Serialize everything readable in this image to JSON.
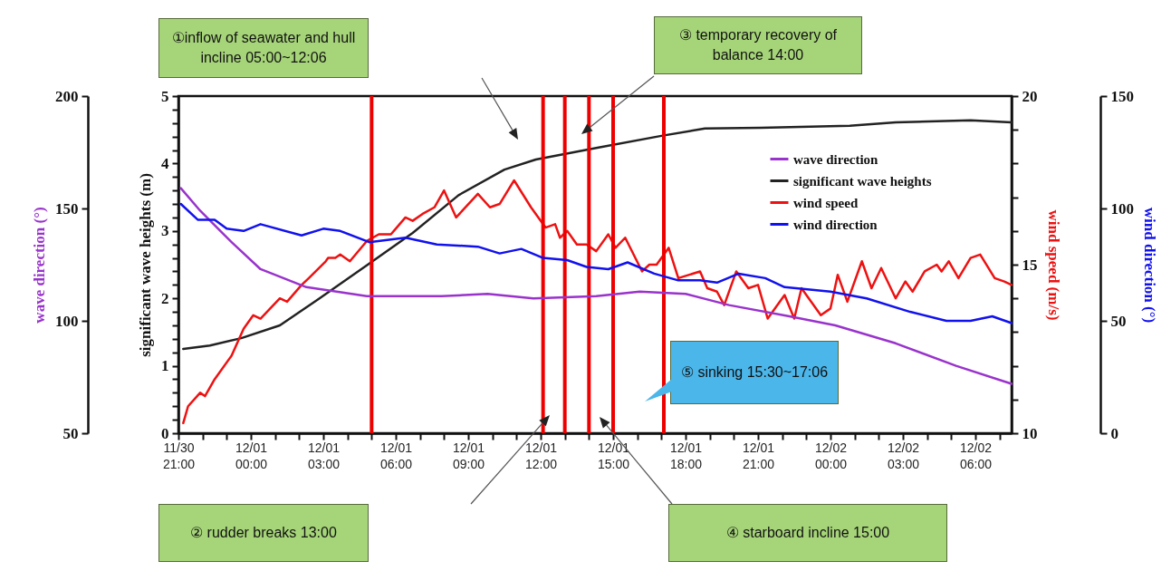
{
  "chart_data": [
    {
      "type": "line",
      "ylabel": "significant wave heights (m)",
      "y2label": "wind speed (m/s)",
      "xlim": [
        "--11-30T21:00",
        "--12-02T07:30"
      ],
      "xticks": [
        {
          "value": "--11-30T21:00",
          "label": "11/30 21:00"
        },
        {
          "value": "--11-30T22:00",
          "label": null
        },
        {
          "value": "--11-30T23:00",
          "label": null
        },
        {
          "value": "--12-01T00:00",
          "label": "12/01 00:00"
        },
        {
          "value": "--12-01T01:00",
          "label": null
        },
        {
          "value": "--12-01T02:00",
          "label": null
        },
        {
          "value": "--12-01T03:00",
          "label": "12/01 03:00"
        },
        {
          "value": "--12-01T04:00",
          "label": null
        },
        {
          "value": "--12-01T05:00",
          "label": null
        },
        {
          "value": "--12-01T06:00",
          "label": "12/01 06:00"
        },
        {
          "value": "--12-01T07:00",
          "label": null
        },
        {
          "value": "--12-01T08:00",
          "label": null
        },
        {
          "value": "--12-01T09:00",
          "label": "12/01 09:00"
        },
        {
          "value": "--12-01T10:00",
          "label": null
        },
        {
          "value": "--12-01T11:00",
          "label": null
        },
        {
          "value": "--12-01T12:00",
          "label": "12/01 12:00"
        },
        {
          "value": "--12-01T13:00",
          "label": null
        },
        {
          "value": "--12-01T14:00",
          "label": null
        },
        {
          "value": "--12-01T15:00",
          "label": "12/01 15:00"
        },
        {
          "value": "--12-01T16:00",
          "label": null
        },
        {
          "value": "--12-01T17:00",
          "label": null
        },
        {
          "value": "--12-01T18:00",
          "label": "12/01 18:00"
        },
        {
          "value": "--12-01T19:00",
          "label": null
        },
        {
          "value": "--12-01T20:00",
          "label": null
        },
        {
          "value": "--12-01T21:00",
          "label": "12/01 21:00"
        },
        {
          "value": "--12-01T22:00",
          "label": null
        },
        {
          "value": "--12-01T23:00",
          "label": null
        },
        {
          "value": "--12-02T00:00",
          "label": "12/02 00:00"
        },
        {
          "value": "--12-02T01:00",
          "label": null
        },
        {
          "value": "--12-02T02:00",
          "label": null
        },
        {
          "value": "--12-02T03:00",
          "label": "12/02 03:00"
        },
        {
          "value": "--12-02T04:00",
          "label": null
        },
        {
          "value": "--12-02T05:00",
          "label": null
        },
        {
          "value": "--12-02T06:00",
          "label": "12/02 06:00"
        },
        {
          "value": "--12-02T07:00",
          "label": null
        }
      ],
      "ylim": [
        0,
        5
      ],
      "yticks": [
        0,
        {
          "value": 0.2,
          "label": null
        },
        {
          "value": 0.4,
          "label": null
        },
        {
          "value": 0.6,
          "label": null
        },
        {
          "value": 0.8,
          "label": null
        },
        1,
        {
          "value": 1.2,
          "label": null
        },
        {
          "value": 1.4,
          "label": null
        },
        {
          "value": 1.6,
          "label": null
        },
        {
          "value": 1.8,
          "label": null
        },
        2,
        {
          "value": 2.2,
          "label": null
        },
        {
          "value": 2.4,
          "label": null
        },
        {
          "value": 2.6,
          "label": null
        },
        {
          "value": 2.8,
          "label": null
        },
        3,
        {
          "value": 3.2,
          "label": null
        },
        {
          "value": 3.4,
          "label": null
        },
        {
          "value": 3.6,
          "label": null
        },
        {
          "value": 3.8,
          "label": null
        },
        4,
        {
          "value": 4.2,
          "label": null
        },
        {
          "value": 4.4,
          "label": null
        },
        {
          "value": 4.6,
          "label": null
        },
        {
          "value": 4.8,
          "label": null
        },
        5
      ],
      "y2lim": [
        10,
        20
      ],
      "y2ticks": [
        10,
        {
          "value": 11,
          "label": null
        },
        {
          "value": 12,
          "label": null
        },
        {
          "value": 13,
          "label": null
        },
        {
          "value": 14,
          "label": null
        },
        15,
        {
          "value": 16,
          "label": null
        },
        {
          "value": 17,
          "label": null
        },
        {
          "value": 18,
          "label": null
        },
        {
          "value": 19,
          "label": null
        },
        20
      ],
      "series": [
        {
          "name": "significant wave heights",
          "color": "#222222",
          "x": [
            "--11-30T21:12",
            "--11-30T22:18",
            "--11-30T23:36",
            "--12-01T01:12",
            "--12-01T02:48",
            "--12-01T04:48",
            "--12-01T06:42",
            "--12-01T08:36",
            "--12-01T10:30",
            "--12-01T11:48",
            "--12-01T14:18",
            "--12-01T17:00",
            "--12-01T18:48",
            "--12-01T21:06",
            "--12-02T00:48",
            "--12-02T02:42",
            "--12-02T05:48",
            "--12-02T07:30"
          ],
          "values": [
            1.25,
            1.3,
            1.41,
            1.6,
            1.99,
            2.49,
            2.97,
            3.53,
            3.91,
            4.06,
            4.23,
            4.41,
            4.52,
            4.53,
            4.56,
            4.61,
            4.64,
            4.61
          ]
        },
        {
          "name": "wind speed",
          "color": "#ee1111",
          "axis": "y2",
          "x": [
            "--11-30T21:12",
            "--11-30T21:24",
            "--11-30T21:54",
            "--11-30T22:06",
            "--11-30T22:30",
            "--11-30T23:12",
            "--11-30T23:42",
            "--12-01T00:06",
            "--12-01T00:24",
            "--12-01T01:12",
            "--12-01T01:30",
            "--12-01T02:06",
            "--12-01T02:24",
            "--12-01T03:06",
            "--12-01T03:12",
            "--12-01T03:30",
            "--12-01T03:42",
            "--12-01T04:06",
            "--12-01T04:48",
            "--12-01T05:18",
            "--12-01T05:48",
            "--12-01T06:24",
            "--12-01T06:42",
            "--12-01T07:06",
            "--12-01T07:36",
            "--12-01T08:00",
            "--12-01T08:30",
            "--12-01T09:24",
            "--12-01T09:54",
            "--12-01T10:18",
            "--12-01T10:54",
            "--12-01T11:36",
            "--12-01T12:12",
            "--12-01T12:36",
            "--12-01T12:48",
            "--12-01T13:06",
            "--12-01T13:30",
            "--12-01T13:54",
            "--12-01T14:18",
            "--12-01T14:48",
            "--12-01T15:06",
            "--12-01T15:30",
            "--12-01T16:12",
            "--12-01T16:30",
            "--12-01T16:48",
            "--12-01T17:18",
            "--12-01T17:42",
            "--12-01T18:36",
            "--12-01T18:54",
            "--12-01T19:18",
            "--12-01T19:36",
            "--12-01T20:06",
            "--12-01T20:36",
            "--12-01T21:00",
            "--12-01T21:24",
            "--12-01T22:06",
            "--12-01T22:30",
            "--12-01T22:48",
            "--12-01T23:36",
            "--12-02T00:00",
            "--12-02T00:18",
            "--12-02T00:42",
            "--12-02T01:18",
            "--12-02T01:42",
            "--12-02T02:06",
            "--12-02T02:42",
            "--12-02T03:06",
            "--12-02T03:24",
            "--12-02T03:54",
            "--12-02T04:24",
            "--12-02T04:36",
            "--12-02T04:54",
            "--12-02T05:18",
            "--12-02T05:48",
            "--12-02T06:12",
            "--12-02T06:48",
            "--12-02T07:12",
            "--12-02T07:30"
          ],
          "values": [
            10.3,
            10.8,
            11.2,
            11.1,
            11.6,
            12.3,
            13.1,
            13.5,
            13.4,
            14.0,
            13.9,
            14.4,
            14.6,
            15.1,
            15.2,
            15.2,
            15.3,
            15.1,
            15.7,
            15.9,
            15.9,
            16.4,
            16.3,
            16.5,
            16.7,
            17.2,
            16.4,
            17.1,
            16.7,
            16.8,
            17.5,
            16.7,
            16.1,
            16.2,
            15.8,
            16.0,
            15.6,
            15.6,
            15.4,
            15.9,
            15.5,
            15.8,
            14.8,
            15.0,
            15.0,
            15.5,
            14.6,
            14.8,
            14.3,
            14.2,
            13.8,
            14.8,
            14.3,
            14.4,
            13.4,
            14.1,
            13.4,
            14.3,
            13.5,
            13.7,
            14.7,
            13.9,
            15.1,
            14.3,
            14.9,
            14.0,
            14.5,
            14.2,
            14.8,
            15.0,
            14.8,
            15.1,
            14.6,
            15.2,
            15.3,
            14.6,
            14.5,
            14.4
          ]
        }
      ],
      "ref_lines": [
        {
          "axis": "x",
          "value": "--12-01T05:00",
          "color": "#ee0000"
        },
        {
          "axis": "x",
          "value": "--12-01T12:06",
          "color": "#ee0000"
        },
        {
          "axis": "x",
          "value": "--12-01T13:00",
          "color": "#ee0000"
        },
        {
          "axis": "x",
          "value": "--12-01T14:00",
          "color": "#ee0000"
        },
        {
          "axis": "x",
          "value": "--12-01T15:00",
          "color": "#ee0000"
        },
        {
          "axis": "x",
          "value": "--12-01T17:06",
          "color": "#ee0000"
        }
      ],
      "annotations": [
        "①inflow of seawater and hull incline  05:00~12:06",
        "③ temporary recovery of balance  14:00",
        "⑤ sinking 15:30~17:06",
        "② rudder breaks 13:00",
        "④ starboard incline 15:00"
      ],
      "grid": false,
      "legend": "top right",
      "line_style": "solid"
    },
    {
      "type": "line",
      "ylabel": "wave direction (°)",
      "y2label": "wind direction (°)",
      "xlim": [
        "--11-30T21:00",
        "--12-02T07:30"
      ],
      "ylim": [
        50,
        200
      ],
      "yticks": [
        50,
        100,
        150,
        200
      ],
      "y2lim": [
        0,
        150
      ],
      "y2ticks": [
        0,
        50,
        100,
        150
      ],
      "series": [
        {
          "name": "wave direction",
          "color": "#9933cc",
          "x": [
            "--11-30T21:06",
            "--11-30T21:54",
            "--11-30T23:12",
            "--12-01T00:24",
            "--12-01T02:18",
            "--12-01T04:48",
            "--12-01T07:54",
            "--12-01T09:48",
            "--12-01T11:42",
            "--12-01T14:18",
            "--12-01T16:06",
            "--12-01T18:00",
            "--12-01T19:48",
            "--12-01T22:18",
            "--12-02T00:12",
            "--12-02T02:42",
            "--12-02T05:12",
            "--12-02T07:30"
          ],
          "values": [
            159,
            149,
            135,
            123,
            115,
            111,
            111,
            112,
            110,
            111,
            113,
            112,
            107,
            102,
            98,
            90,
            80,
            72
          ]
        },
        {
          "name": "wind direction",
          "color": "#1111ee",
          "axis": "y2",
          "x": [
            "--11-30T21:06",
            "--11-30T21:48",
            "--11-30T22:30",
            "--11-30T23:00",
            "--11-30T23:42",
            "--12-01T00:24",
            "--12-01T02:06",
            "--12-01T03:00",
            "--12-01T03:42",
            "--12-01T04:54",
            "--12-01T06:24",
            "--12-01T07:42",
            "--12-01T09:24",
            "--12-01T10:18",
            "--12-01T11:12",
            "--12-01T12:06",
            "--12-01T13:06",
            "--12-01T13:54",
            "--12-01T14:48",
            "--12-01T15:36",
            "--12-01T16:42",
            "--12-01T17:42",
            "--12-01T18:36",
            "--12-01T19:18",
            "--12-01T20:12",
            "--12-01T21:18",
            "--12-01T22:06",
            "--12-02T00:00",
            "--12-02T01:30",
            "--12-02T03:18",
            "--12-02T04:48",
            "--12-02T05:48",
            "--12-02T06:42",
            "--12-02T07:30"
          ],
          "values": [
            102,
            95,
            95,
            91,
            90,
            93,
            88,
            91,
            90,
            85,
            87,
            84,
            83,
            80,
            82,
            78,
            77,
            74,
            73,
            76,
            71,
            68,
            68,
            67,
            71,
            69,
            65,
            63,
            60,
            54,
            50,
            50,
            52,
            49
          ]
        }
      ],
      "tick_labels": "y",
      "grid": false,
      "legend": "top right",
      "line_style": "solid"
    }
  ]
}
